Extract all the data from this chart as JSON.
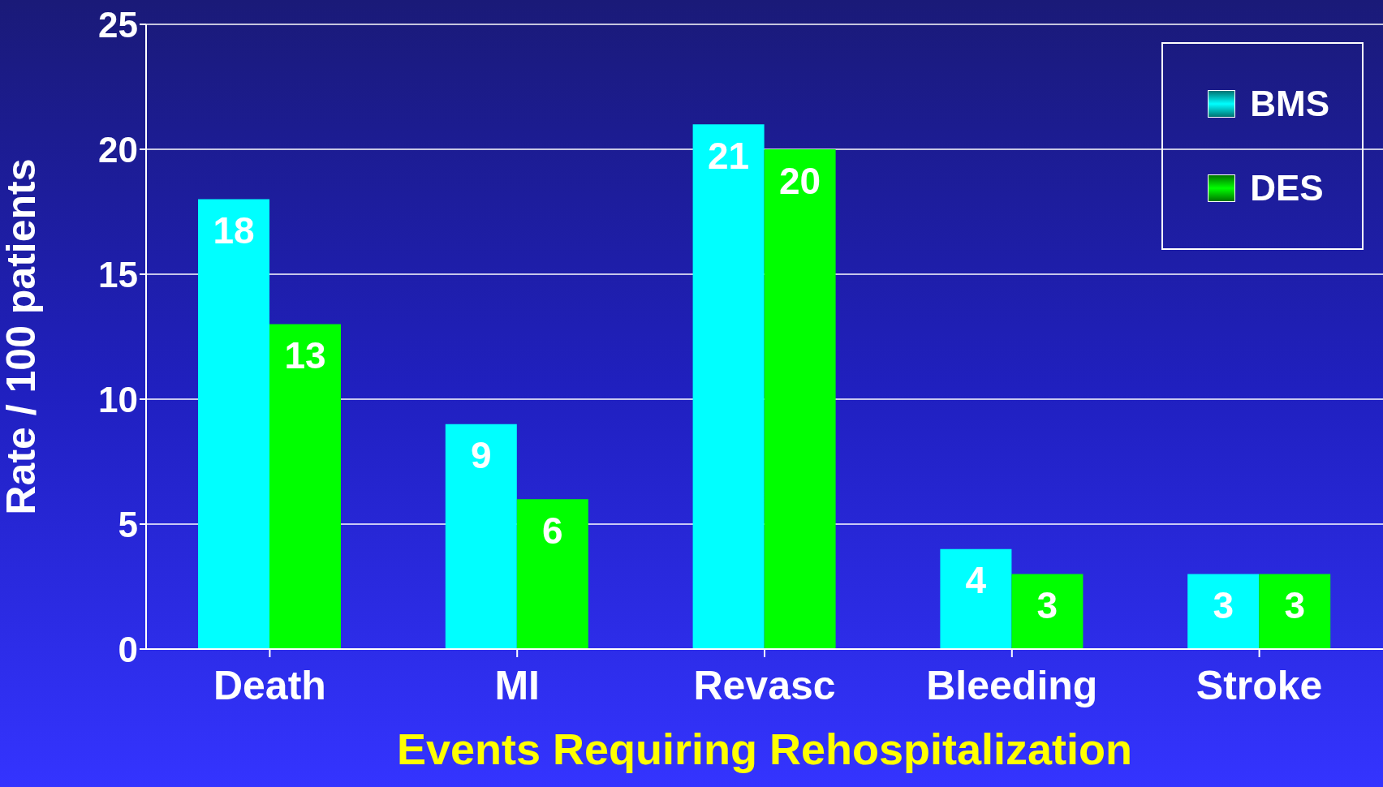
{
  "chart_data": {
    "type": "bar",
    "categories": [
      "Death",
      "MI",
      "Revasc",
      "Bleeding",
      "Stroke"
    ],
    "series": [
      {
        "name": "BMS",
        "color": "#00ffff",
        "values": [
          18,
          9,
          21,
          4,
          3
        ]
      },
      {
        "name": "DES",
        "color": "#00ff00",
        "values": [
          13,
          6,
          20,
          3,
          3
        ]
      }
    ],
    "xlabel": "Events Requiring Rehospitalization",
    "ylabel": "Rate / 100 patients",
    "ylim": [
      0,
      25
    ],
    "yticks": [
      0,
      5,
      10,
      15,
      20,
      25
    ],
    "grid": "y",
    "legend": "top right",
    "data_labels": true
  }
}
